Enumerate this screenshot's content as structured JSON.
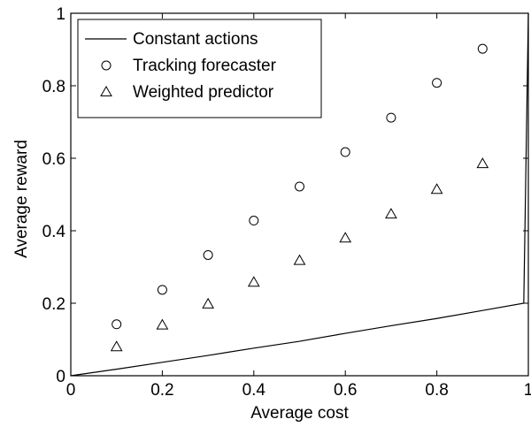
{
  "chart_data": {
    "type": "line",
    "xlabel": "Average cost",
    "ylabel": "Average reward",
    "xlim": [
      0,
      1
    ],
    "ylim": [
      0,
      1
    ],
    "xticks": [
      "0",
      "0.2",
      "0.4",
      "0.6",
      "0.8",
      "1"
    ],
    "yticks": [
      "0",
      "0.2",
      "0.4",
      "0.6",
      "0.8",
      "1"
    ],
    "grid": false,
    "legend_position": "top-left",
    "series": [
      {
        "name": "Constant actions",
        "style": "line",
        "x": [
          0,
          0.1,
          0.2,
          0.3,
          0.4,
          0.5,
          0.6,
          0.7,
          0.8,
          0.9,
          0.99,
          1.0
        ],
        "y": [
          0,
          0.018,
          0.037,
          0.056,
          0.076,
          0.095,
          0.117,
          0.138,
          0.158,
          0.18,
          0.2,
          1.0
        ]
      },
      {
        "name": "Tracking forecaster",
        "style": "circle",
        "x": [
          0.1,
          0.2,
          0.3,
          0.4,
          0.5,
          0.6,
          0.7,
          0.8,
          0.9
        ],
        "y": [
          0.142,
          0.237,
          0.333,
          0.428,
          0.522,
          0.617,
          0.712,
          0.808,
          0.902
        ]
      },
      {
        "name": "Weighted predictor",
        "style": "triangle",
        "x": [
          0.1,
          0.2,
          0.3,
          0.4,
          0.5,
          0.6,
          0.7,
          0.8,
          0.9
        ],
        "y": [
          0.08,
          0.14,
          0.198,
          0.258,
          0.318,
          0.38,
          0.446,
          0.514,
          0.585
        ]
      }
    ]
  }
}
